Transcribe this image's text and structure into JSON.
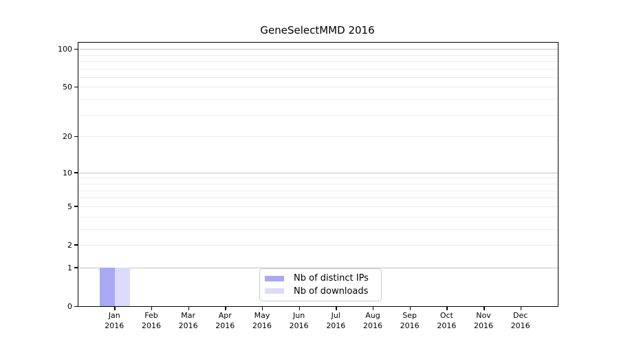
{
  "title": "GeneSelectMMD 2016",
  "chart_data": {
    "type": "bar",
    "title": "GeneSelectMMD 2016",
    "xlabel": "",
    "ylabel": "",
    "x_months": [
      "Jan",
      "Feb",
      "Mar",
      "Apr",
      "May",
      "Jun",
      "Jul",
      "Aug",
      "Sep",
      "Oct",
      "Nov",
      "Dec"
    ],
    "x_year": "2016",
    "categories": [
      "Jan 2016",
      "Feb 2016",
      "Mar 2016",
      "Apr 2016",
      "May 2016",
      "Jun 2016",
      "Jul 2016",
      "Aug 2016",
      "Sep 2016",
      "Oct 2016",
      "Nov 2016",
      "Dec 2016"
    ],
    "series": [
      {
        "name": "Nb of distinct IPs",
        "color": "#a8a8f5",
        "values": [
          1,
          0,
          0,
          0,
          0,
          0,
          0,
          0,
          0,
          0,
          0,
          0
        ]
      },
      {
        "name": "Nb of downloads",
        "color": "#dcdcfa",
        "values": [
          1,
          0,
          0,
          0,
          0,
          0,
          0,
          0,
          0,
          0,
          0,
          0
        ]
      }
    ],
    "y_scale": "log1p",
    "ylim": [
      0,
      112
    ],
    "y_tick_values": [
      0,
      1,
      2,
      5,
      10,
      20,
      50,
      100
    ],
    "y_tick_labels": [
      "0",
      "1",
      "2",
      "5",
      "10",
      "20",
      "50",
      "100"
    ],
    "grid": {
      "major_values": [
        1,
        10,
        100
      ],
      "minor_values": [
        2,
        3,
        4,
        5,
        6,
        7,
        8,
        9,
        20,
        30,
        40,
        50,
        60,
        70,
        80,
        90
      ],
      "major_color": "#c4c4c4",
      "minor_color": "#ececec"
    },
    "legend": {
      "position": "lower center",
      "items": [
        "Nb of distinct IPs",
        "Nb of downloads"
      ]
    }
  }
}
